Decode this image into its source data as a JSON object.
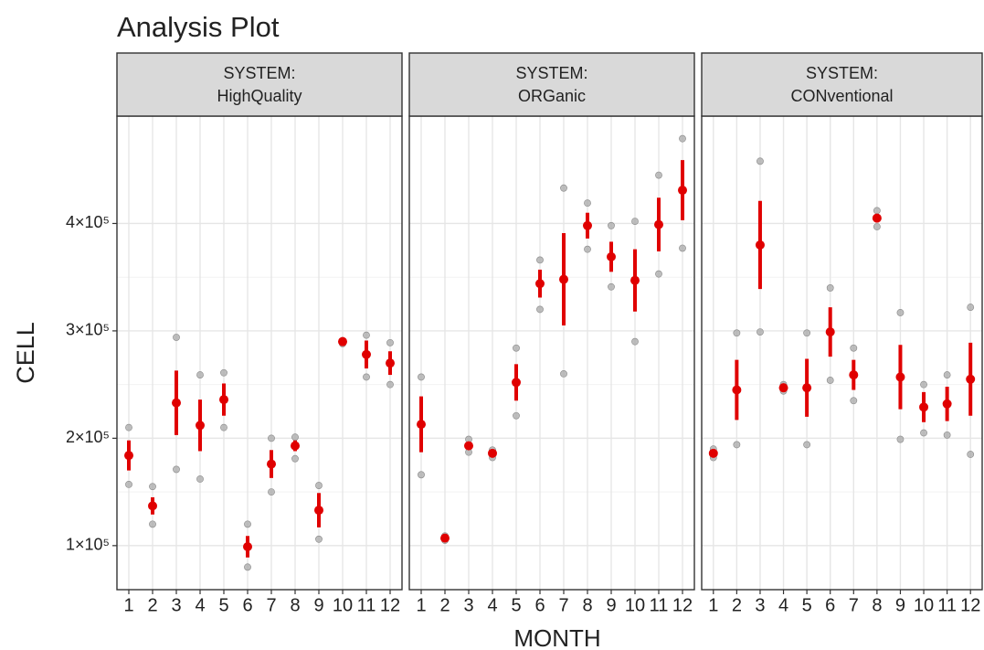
{
  "title": "Analysis Plot",
  "x_label": "MONTH",
  "y_label": "CELL",
  "ylim": [
    59000,
    500000
  ],
  "yticks": [
    {
      "value": 100000,
      "label": "1×10⁵"
    },
    {
      "value": 200000,
      "label": "2×10⁵"
    },
    {
      "value": 300000,
      "label": "3×10⁵"
    },
    {
      "value": 400000,
      "label": "4×10⁵"
    }
  ],
  "grid": true,
  "chart_data": [
    {
      "type": "errorbar",
      "facet_var": "SYSTEM:",
      "facet": "HighQuality",
      "color": "#e00000",
      "point_color": "#a8a8a8",
      "categories": [
        "1",
        "2",
        "3",
        "4",
        "5",
        "6",
        "7",
        "8",
        "9",
        "10",
        "11",
        "12"
      ],
      "values": [
        184000,
        137000,
        233000,
        212000,
        236000,
        99000,
        176000,
        193000,
        133000,
        290000,
        278000,
        270000
      ],
      "errors": [
        14000,
        8000,
        30000,
        24000,
        15000,
        10000,
        13000,
        5000,
        16000,
        2000,
        13000,
        11000
      ],
      "points": [
        [
          210000,
          157000
        ],
        [
          155000,
          120000
        ],
        [
          294000,
          171000
        ],
        [
          259000,
          162000
        ],
        [
          261000,
          210000
        ],
        [
          120000,
          80000
        ],
        [
          200000,
          150000
        ],
        [
          201000,
          181000
        ],
        [
          156000,
          106000
        ],
        [
          291000,
          288000
        ],
        [
          296000,
          257000
        ],
        [
          289000,
          250000
        ]
      ]
    },
    {
      "type": "errorbar",
      "facet_var": "SYSTEM:",
      "facet": "ORGanic",
      "color": "#e00000",
      "point_color": "#a8a8a8",
      "categories": [
        "1",
        "2",
        "3",
        "4",
        "5",
        "6",
        "7",
        "8",
        "9",
        "10",
        "11",
        "12"
      ],
      "values": [
        213000,
        107000,
        193000,
        186000,
        252000,
        344000,
        348000,
        398000,
        369000,
        347000,
        399000,
        431000
      ],
      "errors": [
        26000,
        3000,
        3000,
        3000,
        17000,
        13000,
        43000,
        12000,
        14000,
        29000,
        25000,
        28000
      ],
      "points": [
        [
          257000,
          166000
        ],
        [
          109000,
          105000
        ],
        [
          199000,
          187000
        ],
        [
          189000,
          182000
        ],
        [
          284000,
          221000
        ],
        [
          366000,
          320000
        ],
        [
          433000,
          260000
        ],
        [
          419000,
          376000
        ],
        [
          398000,
          341000
        ],
        [
          402000,
          290000
        ],
        [
          445000,
          353000
        ],
        [
          479000,
          377000
        ]
      ]
    },
    {
      "type": "errorbar",
      "facet_var": "SYSTEM:",
      "facet": "CONventional",
      "color": "#e00000",
      "point_color": "#a8a8a8",
      "categories": [
        "1",
        "2",
        "3",
        "4",
        "5",
        "6",
        "7",
        "8",
        "9",
        "10",
        "11",
        "12"
      ],
      "values": [
        186000,
        245000,
        380000,
        247000,
        247000,
        299000,
        259000,
        405000,
        257000,
        229000,
        232000,
        255000
      ],
      "errors": [
        3000,
        28000,
        41000,
        3000,
        27000,
        23000,
        14000,
        4000,
        30000,
        14000,
        16000,
        34000
      ],
      "points": [
        [
          190000,
          182000
        ],
        [
          298000,
          194000
        ],
        [
          458000,
          299000
        ],
        [
          250000,
          244000
        ],
        [
          298000,
          194000
        ],
        [
          340000,
          254000
        ],
        [
          284000,
          235000
        ],
        [
          412000,
          397000
        ],
        [
          317000,
          199000
        ],
        [
          250000,
          205000
        ],
        [
          259000,
          203000
        ],
        [
          322000,
          185000
        ]
      ]
    }
  ]
}
